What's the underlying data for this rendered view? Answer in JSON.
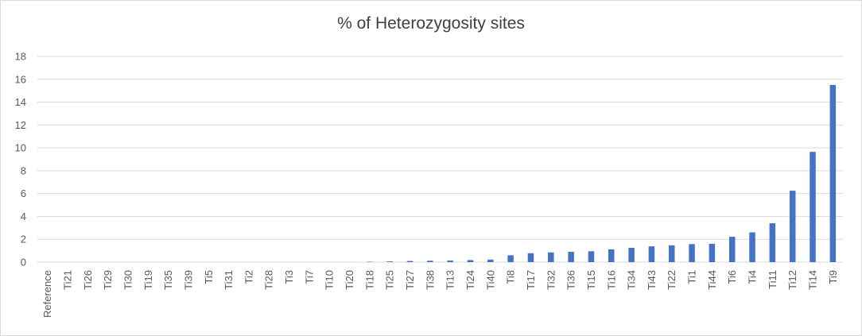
{
  "chart_data": {
    "type": "bar",
    "title": "% of Heterozygosity sites",
    "xlabel": "",
    "ylabel": "",
    "ylim": [
      0,
      18
    ],
    "yticks": [
      0,
      2,
      4,
      6,
      8,
      10,
      12,
      14,
      16,
      18
    ],
    "grid": true,
    "legend": "none",
    "bar_color": "#4472c4",
    "grid_color": "#d9d9d9",
    "categories": [
      "Reference",
      "Ti21",
      "Ti26",
      "Ti29",
      "Ti30",
      "Ti19",
      "Ti35",
      "Ti39",
      "Ti5",
      "Ti31",
      "Ti2",
      "Ti28",
      "Ti3",
      "Ti7",
      "Ti10",
      "Ti20",
      "Ti18",
      "Ti25",
      "Ti27",
      "Ti38",
      "Ti13",
      "Ti24",
      "Ti40",
      "Ti8",
      "Ti17",
      "Ti32",
      "Ti36",
      "Ti15",
      "Ti16",
      "Ti34",
      "Ti43",
      "Ti22",
      "Ti1",
      "Ti44",
      "Ti6",
      "Ti4",
      "Ti11",
      "Ti12",
      "Ti14",
      "Ti9"
    ],
    "values": [
      0,
      0,
      0,
      0,
      0,
      0,
      0,
      0,
      0,
      0,
      0,
      0,
      0,
      0,
      0,
      0,
      0.03,
      0.06,
      0.1,
      0.12,
      0.14,
      0.18,
      0.22,
      0.6,
      0.78,
      0.85,
      0.9,
      0.95,
      1.12,
      1.25,
      1.38,
      1.47,
      1.58,
      1.6,
      2.22,
      2.6,
      3.4,
      6.25,
      9.65,
      15.5
    ]
  }
}
